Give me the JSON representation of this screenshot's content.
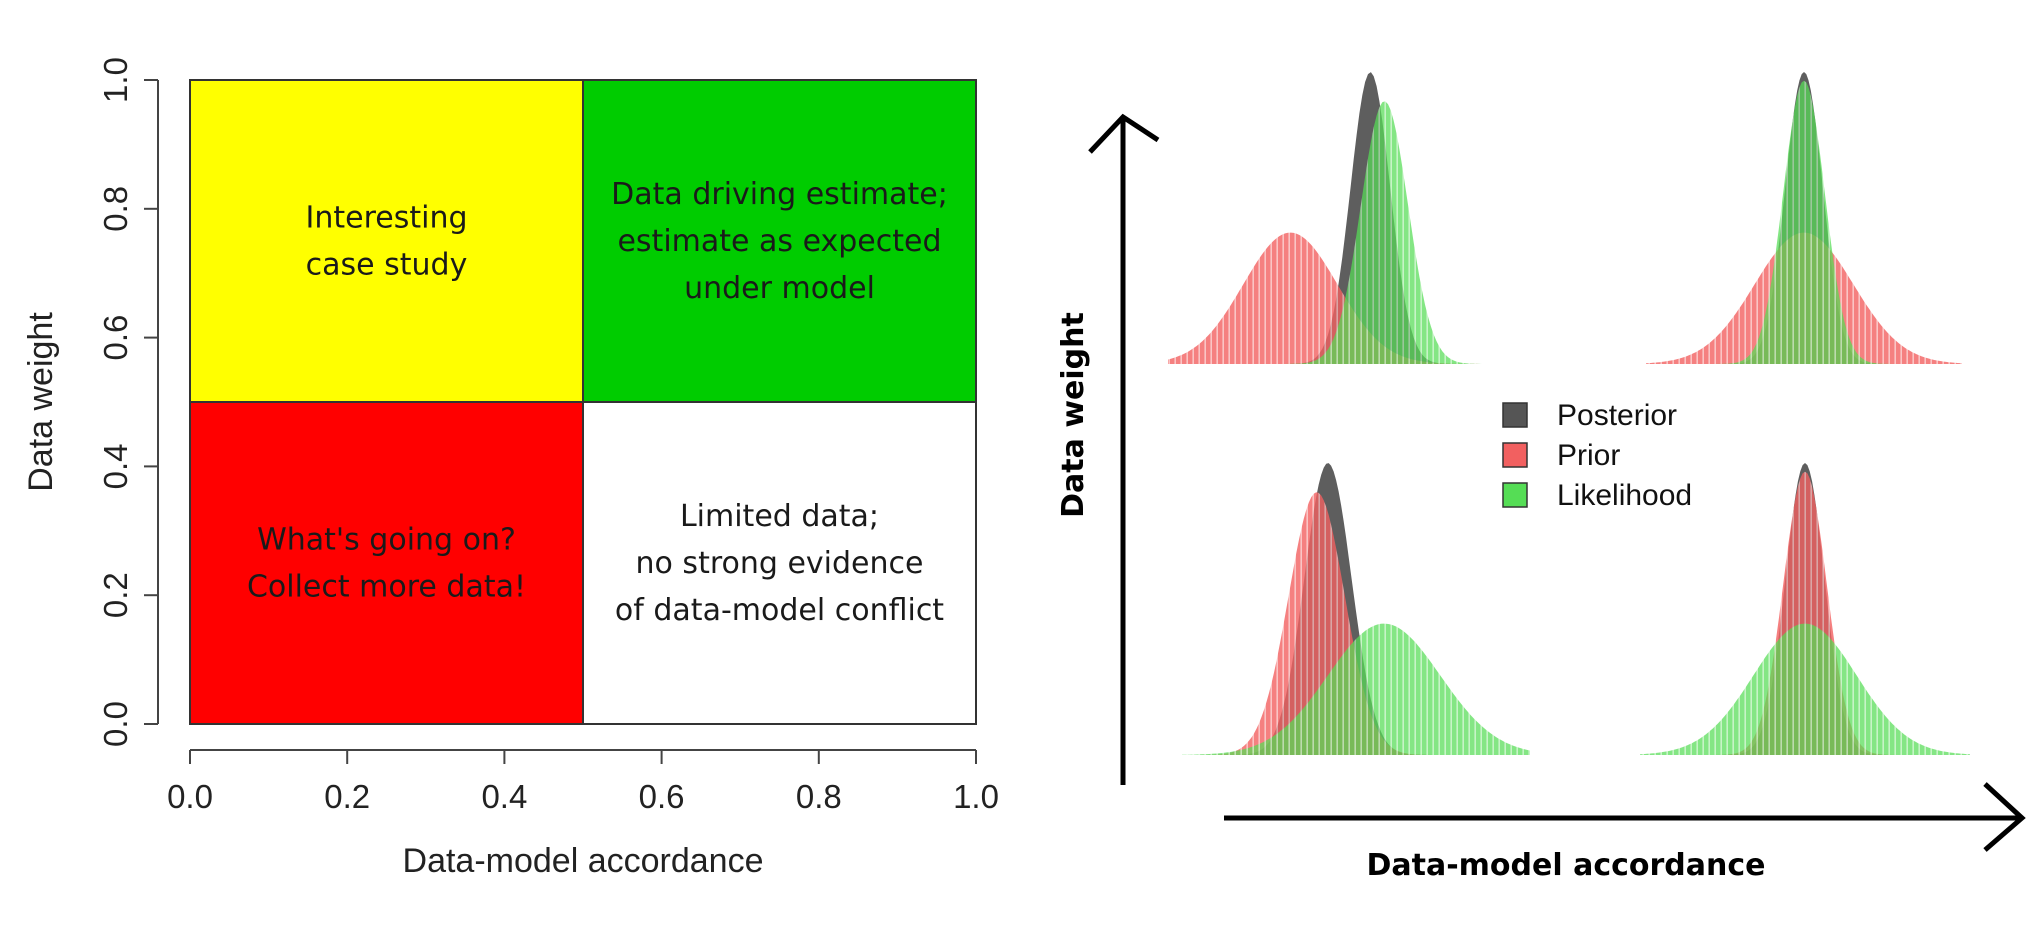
{
  "chart_data": [
    {
      "type": "heatmap",
      "xlabel": "Data-model accordance",
      "ylabel": "Data weight",
      "xlim": [
        0,
        1
      ],
      "ylim": [
        0,
        1
      ],
      "x_ticks": [
        "0.0",
        "0.2",
        "0.4",
        "0.6",
        "0.8",
        "1.0"
      ],
      "y_ticks": [
        "0.0",
        "0.2",
        "0.4",
        "0.6",
        "0.8",
        "1.0"
      ],
      "quadrants": [
        {
          "x": [
            0,
            0.5
          ],
          "y": [
            0.5,
            1
          ],
          "color": "#ffff00",
          "lines": [
            "Interesting",
            "case study"
          ]
        },
        {
          "x": [
            0.5,
            1
          ],
          "y": [
            0.5,
            1
          ],
          "color": "#00cc00",
          "lines": [
            "Data driving estimate;",
            "estimate as expected",
            "under model"
          ]
        },
        {
          "x": [
            0,
            0.5
          ],
          "y": [
            0,
            0.5
          ],
          "color": "#ff0000",
          "lines": [
            "What's going on?",
            "Collect more data!"
          ]
        },
        {
          "x": [
            0.5,
            1
          ],
          "y": [
            0,
            0.5
          ],
          "color": "#ffffff",
          "lines": [
            "Limited data;",
            "no strong evidence",
            "of data-model conflict"
          ]
        }
      ]
    },
    {
      "type": "area",
      "xlabel": "Data-model accordance",
      "ylabel": "Data weight",
      "legend": [
        {
          "name": "Posterior",
          "color": "#555555"
        },
        {
          "name": "Prior",
          "color": "#f26060"
        },
        {
          "name": "Likelihood",
          "color": "#55dd55"
        }
      ],
      "legend_position": "center",
      "panels": [
        {
          "position": "top-left",
          "prior": {
            "mean": -1.4,
            "sd": 1.0,
            "height": 0.45
          },
          "likelihood": {
            "mean": 0.6,
            "sd": 0.5,
            "height": 0.9
          },
          "posterior": {
            "mean": 0.3,
            "sd": 0.42,
            "height": 1.0
          }
        },
        {
          "position": "top-right",
          "prior": {
            "mean": 0.0,
            "sd": 1.0,
            "height": 0.45
          },
          "likelihood": {
            "mean": 0.0,
            "sd": 0.42,
            "height": 0.97
          },
          "posterior": {
            "mean": 0.0,
            "sd": 0.38,
            "height": 1.0
          }
        },
        {
          "position": "bottom-left",
          "prior": {
            "mean": -0.2,
            "sd": 0.5,
            "height": 0.9
          },
          "likelihood": {
            "mean": 1.0,
            "sd": 1.0,
            "height": 0.45
          },
          "posterior": {
            "mean": 0.0,
            "sd": 0.42,
            "height": 1.0
          }
        },
        {
          "position": "bottom-right",
          "prior": {
            "mean": 0.0,
            "sd": 0.42,
            "height": 0.97
          },
          "likelihood": {
            "mean": 0.0,
            "sd": 1.0,
            "height": 0.45
          },
          "posterior": {
            "mean": 0.0,
            "sd": 0.38,
            "height": 1.0
          }
        }
      ]
    }
  ]
}
